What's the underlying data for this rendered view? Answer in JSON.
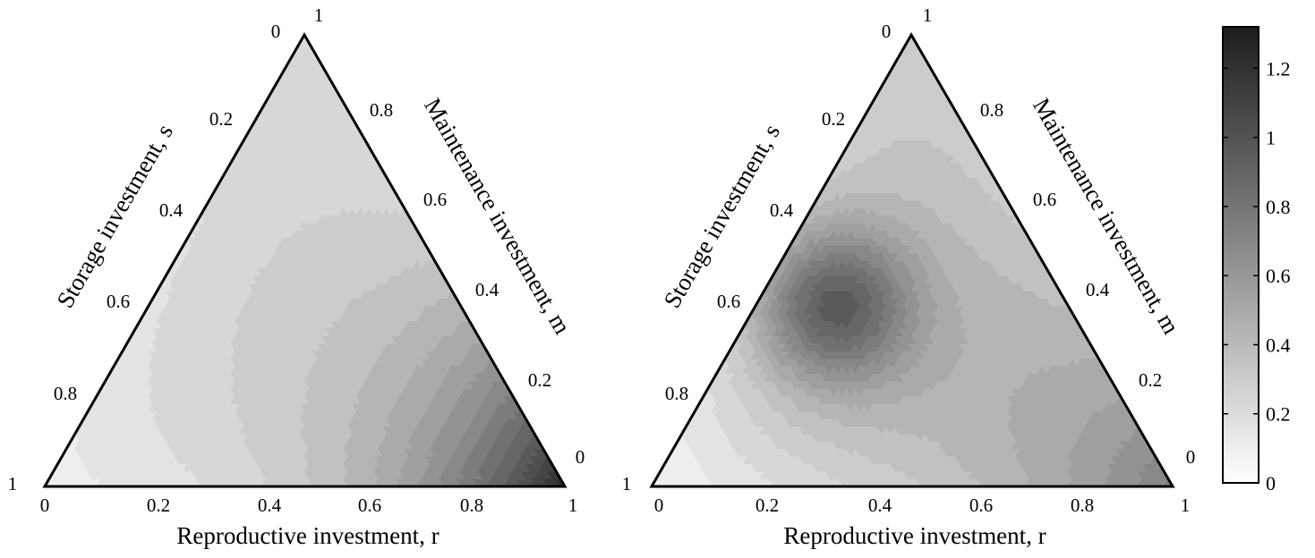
{
  "chart_data": [
    {
      "type": "heatmap",
      "subtype": "ternary-contour",
      "title": "",
      "xlabel": "Reproductive investment, r",
      "left_label": "Storage investment, s",
      "right_label": "Maintenance investment, m",
      "bottom_ticks": [
        "0",
        "0.2",
        "0.4",
        "0.6",
        "0.8",
        "1"
      ],
      "left_ticks": [
        "0",
        "0.2",
        "0.4",
        "0.6",
        "0.8",
        "1"
      ],
      "right_ticks": [
        "1",
        "0.8",
        "0.6",
        "0.4",
        "0.2",
        "0"
      ],
      "value_at_vertices": {
        "s_eq_1": 0.1,
        "m_eq_1": 0.2,
        "r_eq_1": 1.25
      },
      "value_at_center": 0.55,
      "contour_levels": 20,
      "colormap": "gray-reversed"
    },
    {
      "type": "heatmap",
      "subtype": "ternary-contour",
      "title": "",
      "xlabel": "Reproductive investment, r",
      "left_label": "Storage investment, s",
      "right_label": "Maintenance investment, m",
      "bottom_ticks": [
        "0",
        "0.2",
        "0.4",
        "0.6",
        "0.8",
        "1"
      ],
      "left_ticks": [
        "0",
        "0.2",
        "0.4",
        "0.6",
        "0.8",
        "1"
      ],
      "right_ticks": [
        "1",
        "0.8",
        "0.6",
        "0.4",
        "0.2",
        "0"
      ],
      "value_at_vertices": {
        "s_eq_1": 0.05,
        "m_eq_1": 0.3,
        "r_eq_1": 0.75
      },
      "peak": {
        "r": 0.15,
        "s": 0.45,
        "m": 0.4,
        "value": 1.2
      },
      "value_at_center": 0.8,
      "contour_levels": 20,
      "colormap": "gray-reversed"
    }
  ],
  "colorbar": {
    "min": 0,
    "max": 1.32,
    "ticks": [
      0,
      0.2,
      0.4,
      0.6,
      0.8,
      1,
      1.2
    ],
    "tick_labels": [
      "0",
      "0.2",
      "0.4",
      "0.6",
      "0.8",
      "1",
      "1.2"
    ]
  }
}
